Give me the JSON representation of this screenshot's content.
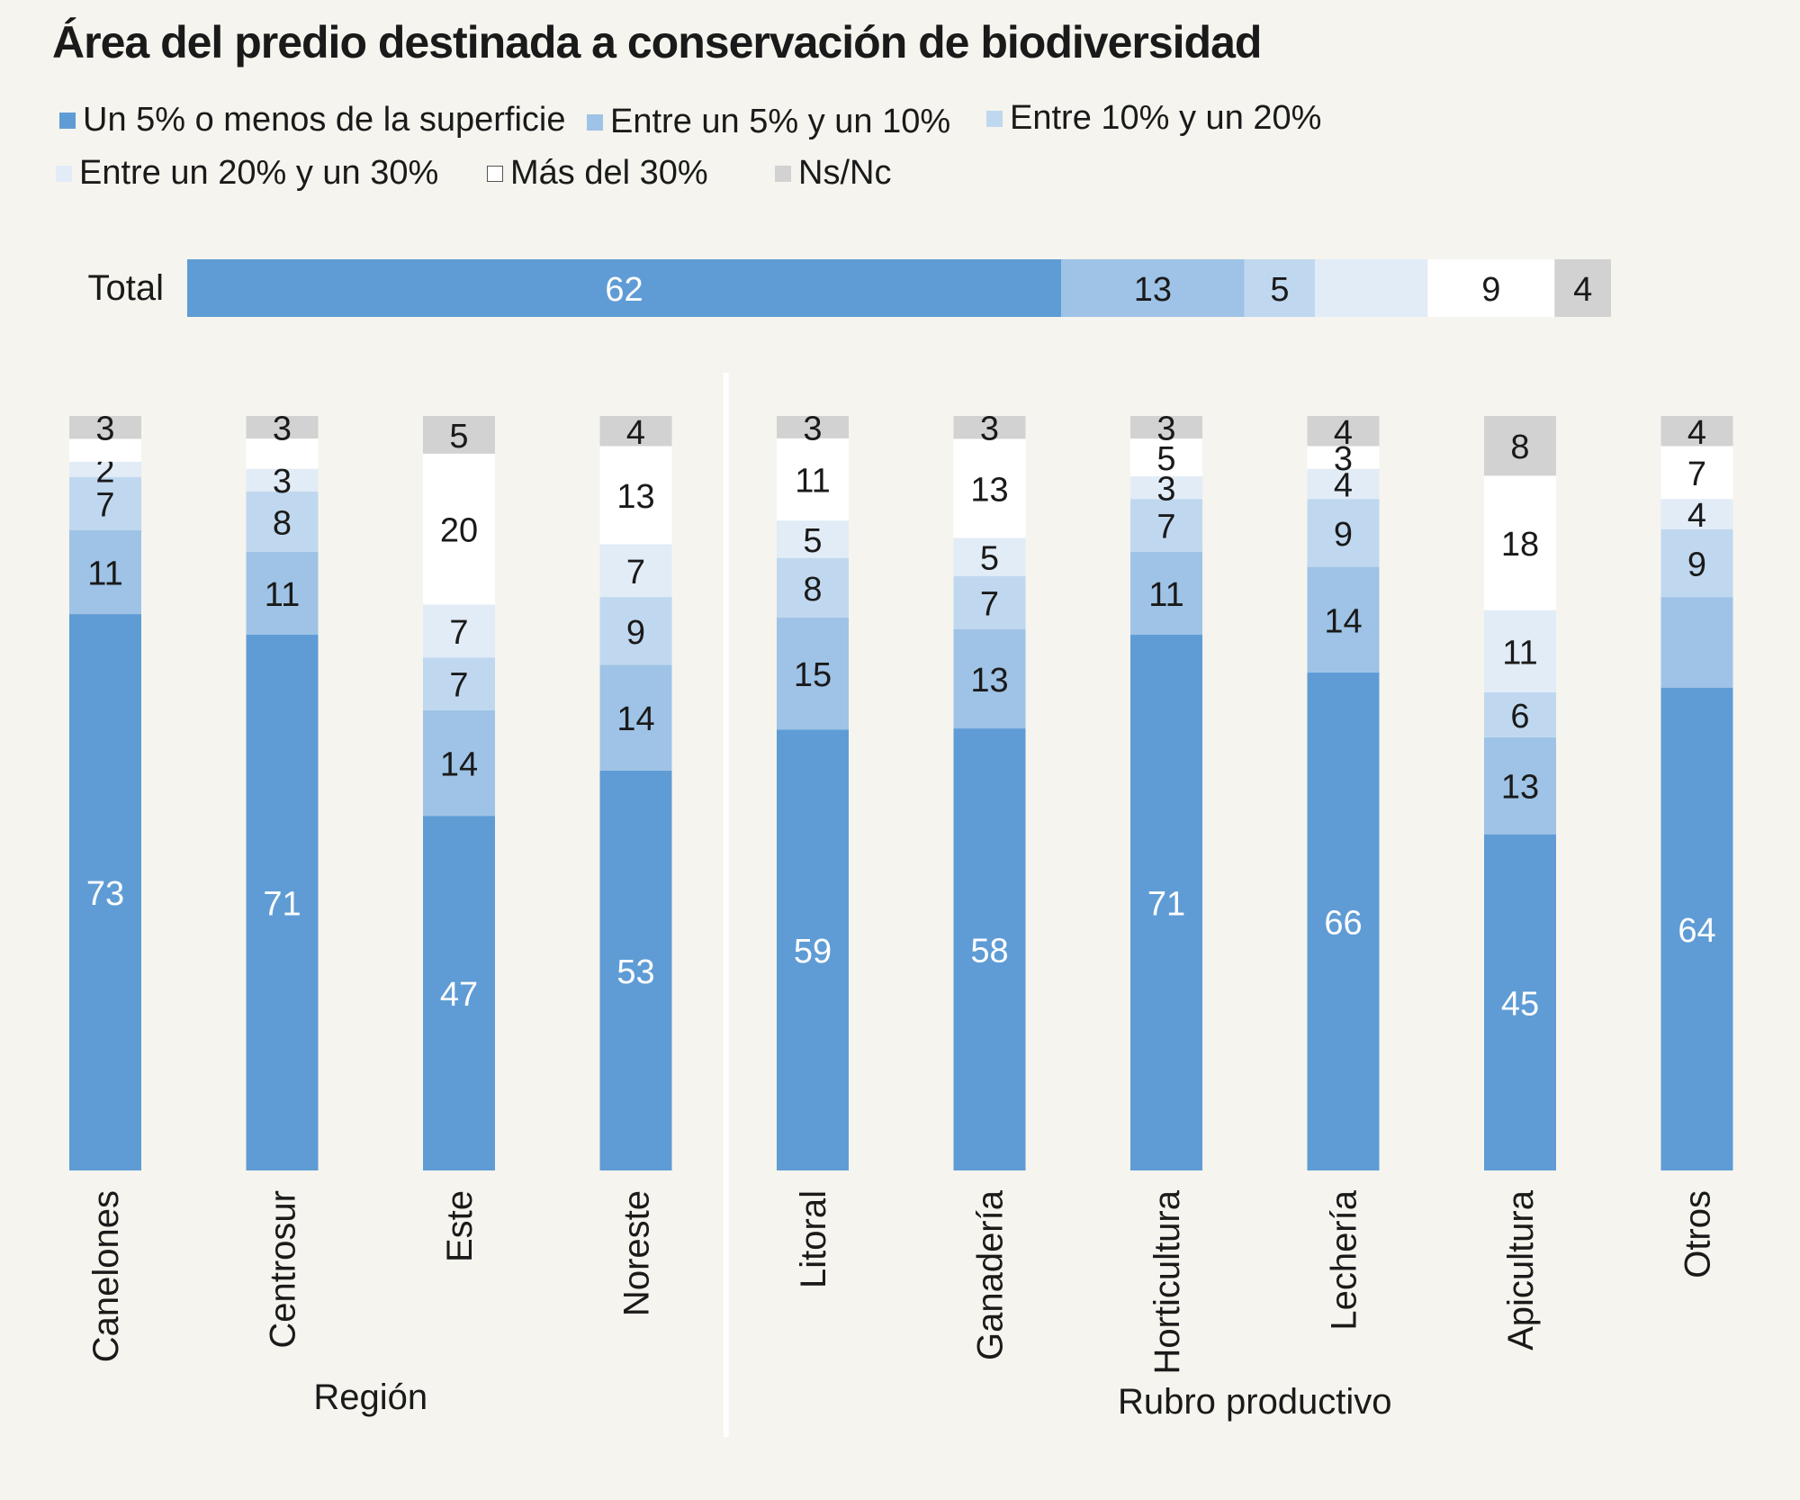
{
  "title": "Área del predio destinada a conservación de biodiversidad",
  "colors": {
    "background": "#f5f4ee",
    "series": [
      "#5f9cd5",
      "#9ec3e6",
      "#c0d8ef",
      "#e2ecf7",
      "#ffffff",
      "#d2d2d2"
    ]
  },
  "legend": [
    {
      "label": "Un 5% o menos de la superficie"
    },
    {
      "label": "Entre un 5% y un 10%"
    },
    {
      "label": "Entre 10% y un 20%"
    },
    {
      "label": "Entre un 20% y un 30%"
    },
    {
      "label": "Más del 30%"
    },
    {
      "label": "Ns/Nc"
    }
  ],
  "chart_data": {
    "type": "bar",
    "stacked": true,
    "unit": "%",
    "series_names": [
      "Un 5% o menos de la superficie",
      "Entre un 5% y un 10%",
      "Entre 10% y un 20%",
      "Entre un 20% y un 30%",
      "Más del 30%",
      "Ns/Nc"
    ],
    "total": {
      "label": "Total",
      "values": [
        62,
        13,
        5,
        8,
        9,
        4
      ],
      "labels": [
        "62",
        "13",
        "5",
        "",
        "9",
        "4"
      ]
    },
    "groups": [
      {
        "name": "Región",
        "categories": [
          {
            "name": "Canelones",
            "values": [
              73,
              11,
              7,
              2,
              3,
              3
            ],
            "labels": [
              "73",
              "11",
              "7",
              "2",
              "",
              "3"
            ]
          },
          {
            "name": "Centrosur",
            "values": [
              71,
              11,
              8,
              3,
              4,
              3
            ],
            "labels": [
              "71",
              "11",
              "8",
              "3",
              "",
              "3"
            ]
          },
          {
            "name": "Este",
            "values": [
              47,
              14,
              7,
              7,
              20,
              5
            ],
            "labels": [
              "47",
              "14",
              "7",
              "7",
              "20",
              "5"
            ]
          },
          {
            "name": "Noreste",
            "values": [
              53,
              14,
              9,
              7,
              13,
              4
            ],
            "labels": [
              "53",
              "14",
              "9",
              "7",
              "13",
              "4"
            ]
          }
        ]
      },
      {
        "name": "Rubro productivo",
        "categories": [
          {
            "name": "Litoral",
            "values": [
              59,
              15,
              8,
              5,
              11,
              3
            ],
            "labels": [
              "59",
              "15",
              "8",
              "5",
              "11",
              "3"
            ]
          },
          {
            "name": "Ganadería",
            "values": [
              58,
              13,
              7,
              5,
              13,
              3
            ],
            "labels": [
              "58",
              "13",
              "7",
              "5",
              "13",
              "3"
            ]
          },
          {
            "name": "Horticultura",
            "values": [
              71,
              11,
              7,
              3,
              5,
              3
            ],
            "labels": [
              "71",
              "11",
              "7",
              "3",
              "5",
              "3"
            ]
          },
          {
            "name": "Lechería",
            "values": [
              66,
              14,
              9,
              4,
              3,
              4
            ],
            "labels": [
              "66",
              "14",
              "9",
              "4",
              "3",
              "4"
            ]
          },
          {
            "name": "Apicultura",
            "values": [
              45,
              13,
              6,
              11,
              18,
              8
            ],
            "labels": [
              "45",
              "13",
              "6",
              "11",
              "18",
              "8"
            ]
          },
          {
            "name": "Otros",
            "values": [
              64,
              12,
              9,
              4,
              7,
              4
            ],
            "labels": [
              "64",
              "",
              "9",
              "4",
              "7",
              "4"
            ]
          }
        ]
      }
    ]
  }
}
